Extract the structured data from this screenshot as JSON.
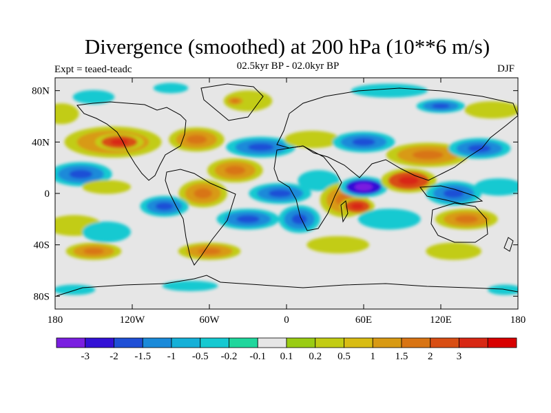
{
  "title": "Divergence (smoothed) at 200 hPa (10**6 m/s)",
  "subtitle": "02.5kyr BP - 02.0kyr BP",
  "experiment": "Expt = teaed-teadc",
  "season": "DJF",
  "map": {
    "projection": "cylindrical-equidistant",
    "lon_range": [
      -180,
      180
    ],
    "lat_range": [
      -90,
      90
    ],
    "lat_ticks": [
      {
        "value": 80,
        "label": "80N"
      },
      {
        "value": 40,
        "label": "40N"
      },
      {
        "value": 0,
        "label": "0"
      },
      {
        "value": -40,
        "label": "40S"
      },
      {
        "value": -80,
        "label": "80S"
      }
    ],
    "lon_ticks": [
      {
        "value": -180,
        "label": "180"
      },
      {
        "value": -120,
        "label": "120W"
      },
      {
        "value": -60,
        "label": "60W"
      },
      {
        "value": 0,
        "label": "0"
      },
      {
        "value": 60,
        "label": "60E"
      },
      {
        "value": 120,
        "label": "120E"
      },
      {
        "value": 180,
        "label": "180"
      }
    ],
    "background_color": "#e6e6e6"
  },
  "colorbar": {
    "colors": [
      "#7a1fe0",
      "#3311d6",
      "#1f4fd6",
      "#1a8ad9",
      "#15b0d8",
      "#15c9d1",
      "#1fd69c",
      "#e6e6e6",
      "#9acc14",
      "#c2cc14",
      "#d8bc14",
      "#d89a14",
      "#d87414",
      "#d84e14",
      "#d82814",
      "#d80000"
    ],
    "labels": [
      "-3",
      "-2",
      "-1.5",
      "-1",
      "-0.5",
      "-0.2",
      "-0.1",
      "0.1",
      "0.2",
      "0.5",
      "1",
      "1.5",
      "2",
      "3"
    ]
  },
  "anomaly_blobs": [
    {
      "lon": -150,
      "lat": 75,
      "rlon": 12,
      "rlat": 4,
      "level": -1
    },
    {
      "lon": -90,
      "lat": 82,
      "rlon": 10,
      "rlat": 3,
      "level": -1
    },
    {
      "lon": -30,
      "lat": 72,
      "rlon": 14,
      "rlat": 6,
      "level": 1
    },
    {
      "lon": -40,
      "lat": 72,
      "rlon": 6,
      "rlat": 3,
      "level": 2
    },
    {
      "lon": 80,
      "lat": 80,
      "rlon": 22,
      "rlat": 4,
      "level": -1
    },
    {
      "lon": 120,
      "lat": 68,
      "rlon": 14,
      "rlat": 4,
      "level": -2
    },
    {
      "lon": 160,
      "lat": 65,
      "rlon": 16,
      "rlat": 5,
      "level": 1
    },
    {
      "lon": -175,
      "lat": 62,
      "rlon": 10,
      "rlat": 6,
      "level": 1
    },
    {
      "lon": -135,
      "lat": 40,
      "rlon": 28,
      "rlat": 9,
      "level": 2
    },
    {
      "lon": -130,
      "lat": 40,
      "rlon": 14,
      "rlat": 5,
      "level": 3
    },
    {
      "lon": -70,
      "lat": 42,
      "rlon": 16,
      "rlat": 7,
      "level": 2
    },
    {
      "lon": -20,
      "lat": 36,
      "rlon": 20,
      "rlat": 6,
      "level": -2
    },
    {
      "lon": 20,
      "lat": 42,
      "rlon": 16,
      "rlat": 5,
      "level": 1
    },
    {
      "lon": 60,
      "lat": 40,
      "rlon": 18,
      "rlat": 6,
      "level": -2
    },
    {
      "lon": 110,
      "lat": 30,
      "rlon": 24,
      "rlat": 7,
      "level": 2
    },
    {
      "lon": 150,
      "lat": 35,
      "rlon": 18,
      "rlat": 6,
      "level": -2
    },
    {
      "lon": -160,
      "lat": 15,
      "rlon": 18,
      "rlat": 7,
      "level": -2
    },
    {
      "lon": -140,
      "lat": 5,
      "rlon": 14,
      "rlat": 4,
      "level": 1
    },
    {
      "lon": -40,
      "lat": 18,
      "rlon": 16,
      "rlat": 7,
      "level": 2
    },
    {
      "lon": -65,
      "lat": 0,
      "rlon": 14,
      "rlat": 8,
      "level": 2
    },
    {
      "lon": -5,
      "lat": 0,
      "rlon": 18,
      "rlat": 6,
      "level": -2
    },
    {
      "lon": 25,
      "lat": 10,
      "rlon": 12,
      "rlat": 6,
      "level": -1
    },
    {
      "lon": 45,
      "lat": -5,
      "rlon": 14,
      "rlat": 10,
      "level": 2
    },
    {
      "lon": 60,
      "lat": 5,
      "rlon": 14,
      "rlat": 6,
      "level": -3
    },
    {
      "lon": 55,
      "lat": -10,
      "rlon": 10,
      "rlat": 5,
      "level": 3
    },
    {
      "lon": 95,
      "lat": 10,
      "rlon": 16,
      "rlat": 7,
      "level": 3
    },
    {
      "lon": 130,
      "lat": 0,
      "rlon": 16,
      "rlat": 7,
      "level": -2
    },
    {
      "lon": 165,
      "lat": 5,
      "rlon": 14,
      "rlat": 5,
      "level": -1
    },
    {
      "lon": -165,
      "lat": -25,
      "rlon": 16,
      "rlat": 6,
      "level": 1
    },
    {
      "lon": -140,
      "lat": -30,
      "rlon": 14,
      "rlat": 6,
      "level": -1
    },
    {
      "lon": -95,
      "lat": -10,
      "rlon": 14,
      "rlat": 6,
      "level": -2
    },
    {
      "lon": -30,
      "lat": -20,
      "rlon": 18,
      "rlat": 6,
      "level": -2
    },
    {
      "lon": 10,
      "lat": -20,
      "rlon": 12,
      "rlat": 8,
      "level": -2
    },
    {
      "lon": 80,
      "lat": -20,
      "rlon": 18,
      "rlat": 6,
      "level": -1
    },
    {
      "lon": 140,
      "lat": -20,
      "rlon": 18,
      "rlat": 6,
      "level": 2
    },
    {
      "lon": -150,
      "lat": -45,
      "rlon": 16,
      "rlat": 5,
      "level": 2
    },
    {
      "lon": -60,
      "lat": -45,
      "rlon": 18,
      "rlat": 5,
      "level": 2
    },
    {
      "lon": 40,
      "lat": -40,
      "rlon": 18,
      "rlat": 5,
      "level": 1
    },
    {
      "lon": 130,
      "lat": -45,
      "rlon": 16,
      "rlat": 5,
      "level": 1
    },
    {
      "lon": -165,
      "lat": -75,
      "rlon": 12,
      "rlat": 3,
      "level": -1
    },
    {
      "lon": -75,
      "lat": -72,
      "rlon": 16,
      "rlat": 3,
      "level": -1
    },
    {
      "lon": 170,
      "lat": -75,
      "rlon": 10,
      "rlat": 3,
      "level": -1
    }
  ]
}
